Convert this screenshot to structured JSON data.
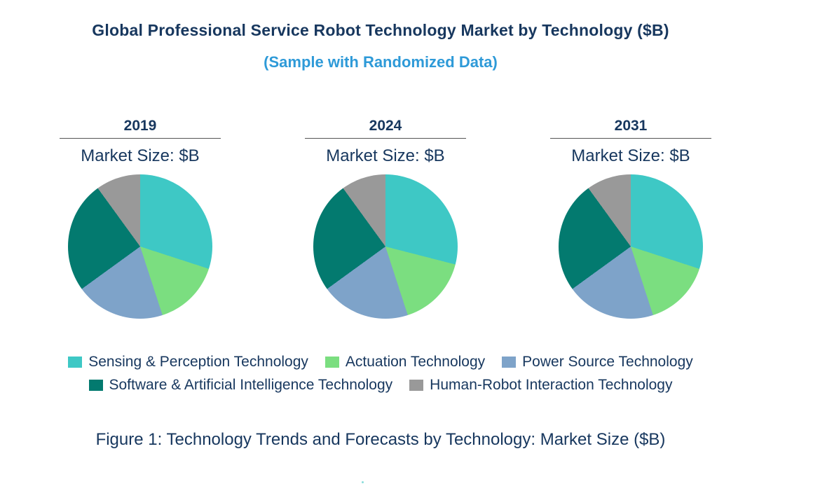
{
  "header": {
    "title": "Global Professional Service Robot Technology Market by Technology ($B)",
    "subtitle": "(Sample with Randomized Data)"
  },
  "caption": "Figure 1: Technology Trends and Forecasts by Technology: Market Size ($B)",
  "colors": {
    "title_text": "#17375E",
    "subtitle_text": "#2E9AD8",
    "body_text": "#17375E",
    "divider": "#555555"
  },
  "chart_data": {
    "type": "pie",
    "title": "Global Professional Service Robot Technology Market by Technology ($B)",
    "subtitle": "(Sample with Randomized Data)",
    "unit_label": "Market Size: $B",
    "legend_position": "bottom",
    "legend_rows": [
      [
        0,
        1,
        2
      ],
      [
        3,
        4
      ]
    ],
    "categories": [
      "Sensing & Perception Technology",
      "Actuation Technology",
      "Power Source Technology",
      "Software & Artificial Intelligence Technology",
      "Human-Robot Interaction Technology"
    ],
    "colors": [
      "#3EC8C5",
      "#7BDE80",
      "#7EA3C9",
      "#037A6F",
      "#999999"
    ],
    "pies": [
      {
        "year": "2019",
        "values_pct": [
          30,
          15,
          20,
          25,
          10
        ]
      },
      {
        "year": "2024",
        "values_pct": [
          29,
          16,
          20,
          25,
          10
        ]
      },
      {
        "year": "2031",
        "values_pct": [
          30,
          15,
          20,
          25,
          10
        ]
      }
    ],
    "start_angle_deg": 0,
    "direction": "clockwise"
  }
}
